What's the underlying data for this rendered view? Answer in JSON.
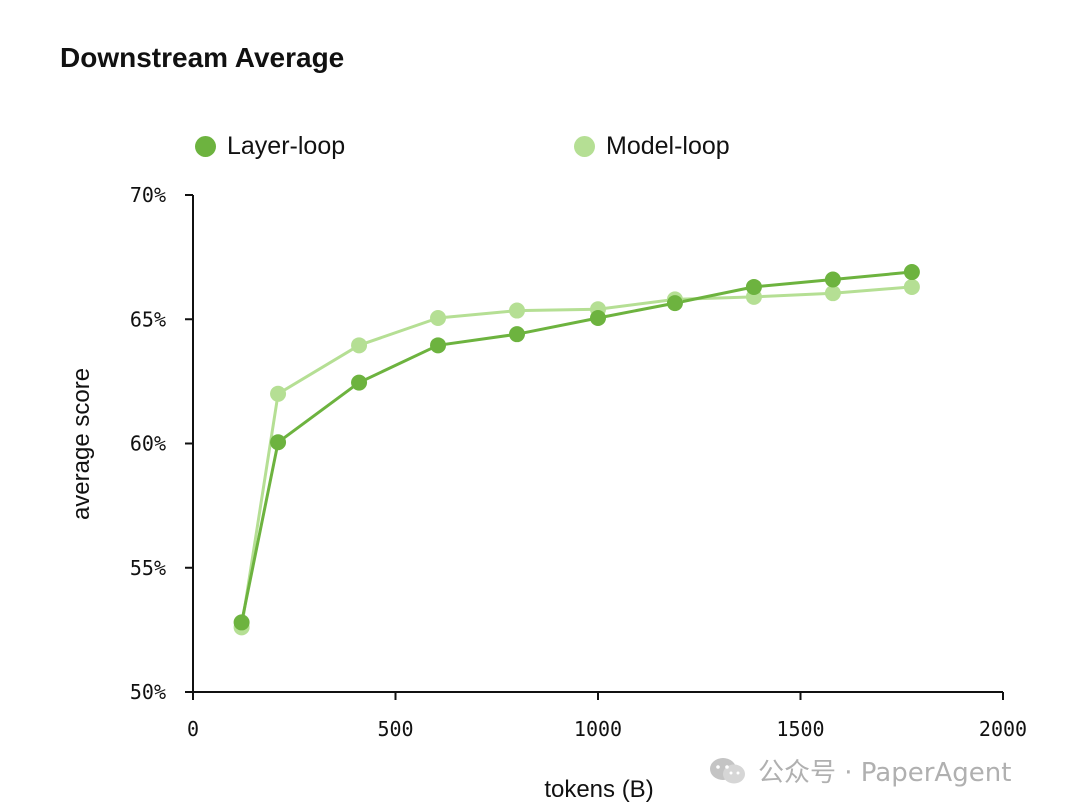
{
  "chart_data": {
    "type": "line",
    "title": "Downstream Average",
    "xlabel": "tokens (B)",
    "ylabel": "average score",
    "xlim": [
      0,
      2000
    ],
    "ylim": [
      50,
      70
    ],
    "xticks": [
      0,
      500,
      1000,
      1500,
      2000
    ],
    "yticks": [
      50,
      55,
      60,
      65,
      70
    ],
    "ytick_labels": [
      "50%",
      "55%",
      "60%",
      "65%",
      "70%"
    ],
    "grid": false,
    "legend_position": "top",
    "series": [
      {
        "name": "Layer-loop",
        "color": "#6db33f",
        "x": [
          120,
          210,
          410,
          605,
          800,
          1000,
          1190,
          1385,
          1580,
          1775
        ],
        "y": [
          52.8,
          60.05,
          62.45,
          63.95,
          64.4,
          65.05,
          65.65,
          66.3,
          66.6,
          66.9
        ]
      },
      {
        "name": "Model-loop",
        "color": "#b5df94",
        "x": [
          120,
          210,
          410,
          605,
          800,
          1000,
          1190,
          1385,
          1580,
          1775
        ],
        "y": [
          52.6,
          62.0,
          63.95,
          65.05,
          65.35,
          65.4,
          65.8,
          65.9,
          66.05,
          66.3
        ]
      }
    ]
  },
  "watermark": {
    "text": "公众号 · PaperAgent",
    "icon": "wechat-icon"
  }
}
